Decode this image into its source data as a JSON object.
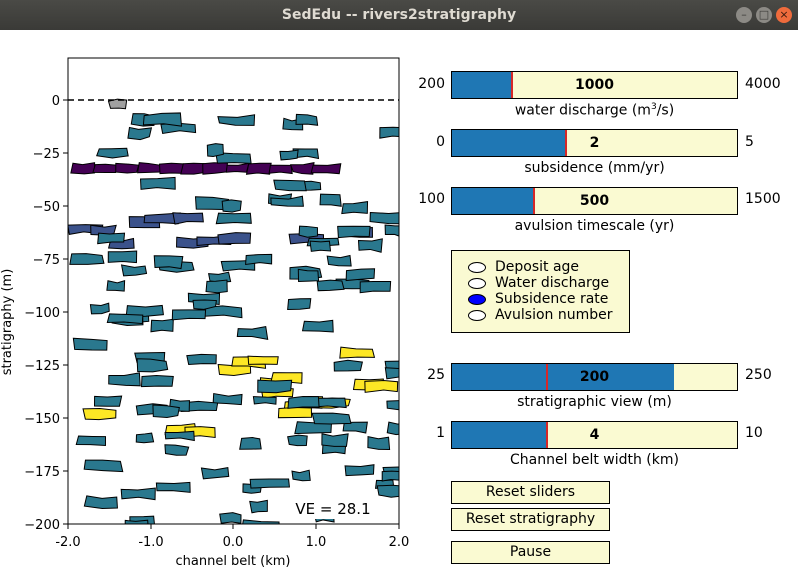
{
  "window": {
    "title": "SedEdu -- rivers2stratigraphy",
    "controls": {
      "minimize": "–",
      "maximize": "□",
      "close": "×"
    }
  },
  "plot": {
    "xlabel": "channel belt (km)",
    "ylabel": "stratigraphy (m)",
    "xticks": [
      "-2.0",
      "-1.0",
      "0.0",
      "1.0",
      "2.0"
    ],
    "yticks": [
      "0",
      "−25",
      "−50",
      "−75",
      "−100",
      "−125",
      "−150",
      "−175",
      "−200"
    ],
    "ve_label": "VE = 28.1",
    "colors": {
      "teal": "#2a788e",
      "purple": "#440154",
      "indigo": "#3b528b",
      "yellow": "#fde725",
      "gray": "#a0a0a0"
    }
  },
  "sliders": [
    {
      "min": "200",
      "max": "4000",
      "value": "1000",
      "label": "water discharge (m",
      "sup": "3",
      "label_suffix": "/s)",
      "fraction": 0.211
    },
    {
      "min": "0",
      "max": "5",
      "value": "2",
      "label": "subsidence (mm/yr)",
      "sup": "",
      "label_suffix": "",
      "fraction": 0.4
    },
    {
      "min": "100",
      "max": "1500",
      "value": "500",
      "label": "avulsion timescale (yr)",
      "sup": "",
      "label_suffix": "",
      "fraction": 0.286
    },
    {
      "min": "25",
      "max": "250",
      "value": "200",
      "label": "stratigraphic view (m)",
      "sup": "",
      "label_suffix": "",
      "fraction": 0.778,
      "marker": 0.333
    },
    {
      "min": "1",
      "max": "10",
      "value": "4",
      "label": "Channel belt width (km)",
      "sup": "",
      "label_suffix": "",
      "fraction": 0.333
    }
  ],
  "color_options": [
    "Deposit age",
    "Water discharge",
    "Subsidence rate",
    "Avulsion number"
  ],
  "color_selected": 2,
  "buttons": {
    "reset_sliders": "Reset sliders",
    "reset_strat": "Reset stratigraphy",
    "pause": "Pause"
  }
}
